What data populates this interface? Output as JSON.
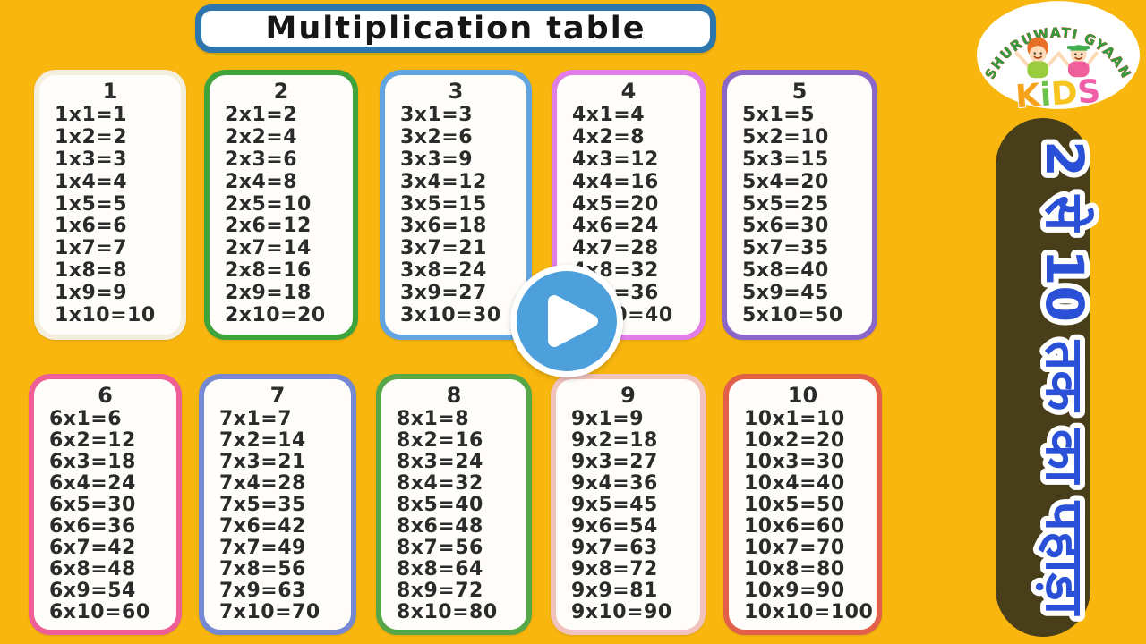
{
  "title": {
    "text": "Multiplication table"
  },
  "logo": {
    "arc_text": "SHURUWATI GYAAN",
    "kids_text": "KiDS",
    "kids_letters": [
      {
        "ch": "K",
        "color": "#f6a21c"
      },
      {
        "ch": "i",
        "color": "#6cc24a"
      },
      {
        "ch": "D",
        "color": "#f8c51f"
      },
      {
        "ch": "S",
        "color": "#ee5fa7"
      }
    ],
    "arc_text_color": "#2f9e41",
    "arc_text_outline": "#c03a12"
  },
  "side_banner": {
    "text": "2 से 10 तक का पहाड़ा",
    "text_color": "#2b50d8",
    "bg_color": "#483e1a"
  },
  "play_button": {
    "icon": "play-triangle",
    "circle_color": "#4da0dc",
    "ring_color": "#ffffff"
  },
  "colors": {
    "background": "#f8b60f",
    "title_border": "#2d76ad",
    "card_text": "#2b2b2b"
  },
  "tables": [
    {
      "number": "1",
      "border_color": "#f4eede",
      "rows": [
        "1x1=1",
        "1x2=2",
        "1x3=3",
        "1x4=4",
        "1x5=5",
        "1x6=6",
        "1x7=7",
        "1x8=8",
        "1x9=9",
        "1x10=10"
      ]
    },
    {
      "number": "2",
      "border_color": "#3fa33c",
      "rows": [
        "2x1=2",
        "2x2=4",
        "2x3=6",
        "2x4=8",
        "2x5=10",
        "2x6=12",
        "2x7=14",
        "2x8=16",
        "2x9=18",
        "2x10=20"
      ]
    },
    {
      "number": "3",
      "border_color": "#62a4e0",
      "rows": [
        "3x1=3",
        "3x2=6",
        "3x3=9",
        "3x4=12",
        "3x5=15",
        "3x6=18",
        "3x7=21",
        "3x8=24",
        "3x9=27",
        "3x10=30"
      ]
    },
    {
      "number": "4",
      "border_color": "#e07de6",
      "rows": [
        "4x1=4",
        "4x2=8",
        "4x3=12",
        "4x4=16",
        "4x5=20",
        "4x6=24",
        "4x7=28",
        "4x8=32",
        "4x9=36",
        "4x10=40"
      ]
    },
    {
      "number": "5",
      "border_color": "#8a66c9",
      "rows": [
        "5x1=5",
        "5x2=10",
        "5x3=15",
        "5x4=20",
        "5x5=25",
        "5x6=30",
        "5x7=35",
        "5x8=40",
        "5x9=45",
        "5x10=50"
      ]
    },
    {
      "number": "6",
      "border_color": "#ee5e97",
      "rows": [
        "6x1=6",
        "6x2=12",
        "6x3=18",
        "6x4=24",
        "6x5=30",
        "6x6=36",
        "6x7=42",
        "6x8=48",
        "6x9=54",
        "6x10=60"
      ]
    },
    {
      "number": "7",
      "border_color": "#7589d2",
      "rows": [
        "7x1=7",
        "7x2=14",
        "7x3=21",
        "7x4=28",
        "7x5=35",
        "7x6=42",
        "7x7=49",
        "7x8=56",
        "7x9=63",
        "7x10=70"
      ]
    },
    {
      "number": "8",
      "border_color": "#55a747",
      "rows": [
        "8x1=8",
        "8x2=16",
        "8x3=24",
        "8x4=32",
        "8x5=40",
        "8x6=48",
        "8x7=56",
        "8x8=64",
        "8x9=72",
        "8x10=80"
      ]
    },
    {
      "number": "9",
      "border_color": "#f2c3bd",
      "rows": [
        "9x1=9",
        "9x2=18",
        "9x3=27",
        "9x4=36",
        "9x5=45",
        "9x6=54",
        "9x7=63",
        "9x8=72",
        "9x9=81",
        "9x10=90"
      ]
    },
    {
      "number": "10",
      "border_color": "#e2604a",
      "rows": [
        "10x1=10",
        "10x2=20",
        "10x3=30",
        "10x4=40",
        "10x5=50",
        "10x6=60",
        "10x7=70",
        "10x8=80",
        "10x9=90",
        "10x10=100"
      ]
    }
  ]
}
